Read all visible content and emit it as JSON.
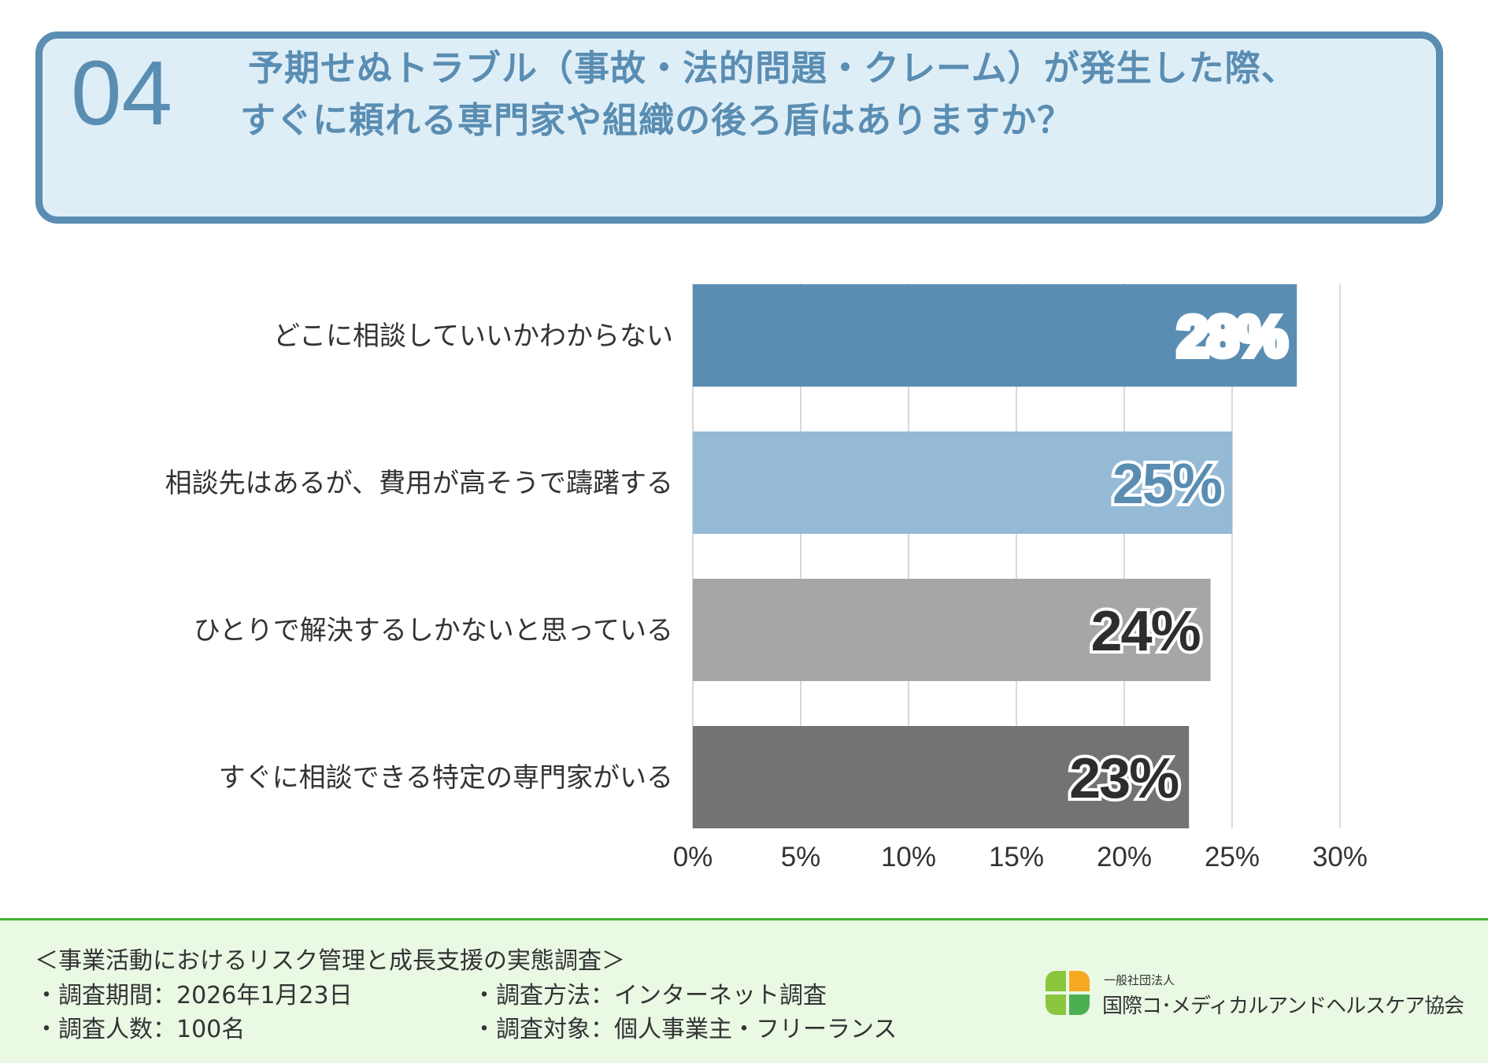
{
  "header": {
    "number": "04",
    "title_line1": "予期せぬトラブル（事故・法的問題・クレーム）が発生した際、",
    "title_line2": "すぐに頼れる専門家や組織の後ろ盾はありますか？"
  },
  "chart_data": {
    "type": "bar",
    "orientation": "horizontal",
    "categories": [
      "どこに相談していいかわからない",
      "相談先はあるが、費用が高そうで躊躇する",
      "ひとりで解決するしかないと思っている",
      "すぐに相談できる特定の専門家がいる"
    ],
    "values": [
      28,
      25,
      24,
      23
    ],
    "value_labels": [
      "28%",
      "25%",
      "24%",
      "23%"
    ],
    "bar_colors": [
      "#5a8db2",
      "#94bad6",
      "#a6a6a6",
      "#737373"
    ],
    "label_colors": [
      "#ffffff",
      "#5a8db2",
      "#2d2d2d",
      "#2d2d2d"
    ],
    "label_stroke_colors": [
      "#5a8db2",
      "#ffffff",
      "#ffffff",
      "#ffffff"
    ],
    "xlim": [
      0,
      30
    ],
    "xticks": [
      0,
      5,
      10,
      15,
      20,
      25,
      30
    ],
    "xtick_labels": [
      "0%",
      "5%",
      "10%",
      "15%",
      "20%",
      "25%",
      "30%"
    ],
    "grid": true,
    "title": "",
    "xlabel": "",
    "ylabel": ""
  },
  "footer": {
    "survey_title": "＜事業活動におけるリスク管理と成長支援の実態調査＞",
    "period": "・調査期間：2026年1月23日",
    "method": "・調査方法：インターネット調査",
    "respondents": "・調査人数：100名",
    "target": "・調査対象：個人事業主・フリーランス",
    "org_sub": "一般社団法人",
    "org_name": "国際コ･メディカルアンドヘルスケア協会",
    "logo_colors": [
      "#8cc63f",
      "#f7a823",
      "#8cc63f",
      "#4caf50"
    ]
  }
}
